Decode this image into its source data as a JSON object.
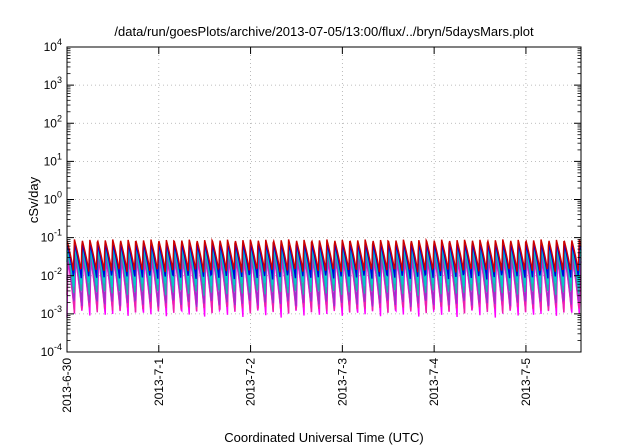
{
  "chart_data": {
    "type": "line",
    "title": "/data/run/goesPlots/archive/2013-07-05/13:00/flux/../bryn/5daysMars.plot",
    "xlabel": "Coordinated Universal Time (UTC)",
    "ylabel": "cSv/day",
    "yscale": "log",
    "ylim": [
      0.0001,
      10000
    ],
    "xlim_days": [
      0,
      5.6
    ],
    "grid": true,
    "x_ticks": [
      {
        "label": "2013-6-30",
        "day": 0
      },
      {
        "label": "2013-7-1",
        "day": 1
      },
      {
        "label": "2013-7-2",
        "day": 2
      },
      {
        "label": "2013-7-3",
        "day": 3
      },
      {
        "label": "2013-7-4",
        "day": 4
      },
      {
        "label": "2013-7-5",
        "day": 5
      }
    ],
    "y_ticks": [
      {
        "base": "10",
        "exp": "-4",
        "value": 0.0001
      },
      {
        "base": "10",
        "exp": "-3",
        "value": 0.001
      },
      {
        "base": "10",
        "exp": "-2",
        "value": 0.01
      },
      {
        "base": "10",
        "exp": "-1",
        "value": 0.1
      },
      {
        "base": "10",
        "exp": "0",
        "value": 1
      },
      {
        "base": "10",
        "exp": "1",
        "value": 10
      },
      {
        "base": "10",
        "exp": "2",
        "value": 100
      },
      {
        "base": "10",
        "exp": "3",
        "value": 1000
      },
      {
        "base": "10",
        "exp": "4",
        "value": 10000
      }
    ],
    "cycles_per_day": 12,
    "series": [
      {
        "color": "#ff00ff",
        "peak": 0.028,
        "trough": 0.0008,
        "phase": 0.0
      },
      {
        "color": "#ee22aa",
        "peak": 0.032,
        "trough": 0.001,
        "phase": 0.03
      },
      {
        "color": "#9933cc",
        "peak": 0.04,
        "trough": 0.0015,
        "phase": 0.05
      },
      {
        "color": "#20b2aa",
        "peak": 0.05,
        "trough": 0.003,
        "phase": 0.08
      },
      {
        "color": "#00cccc",
        "peak": 0.06,
        "trough": 0.005,
        "phase": 0.1
      },
      {
        "color": "#0000dd",
        "peak": 0.07,
        "trough": 0.008,
        "phase": 0.12
      },
      {
        "color": "#cc0000",
        "peak": 0.09,
        "trough": 0.012,
        "phase": 0.15
      }
    ]
  }
}
